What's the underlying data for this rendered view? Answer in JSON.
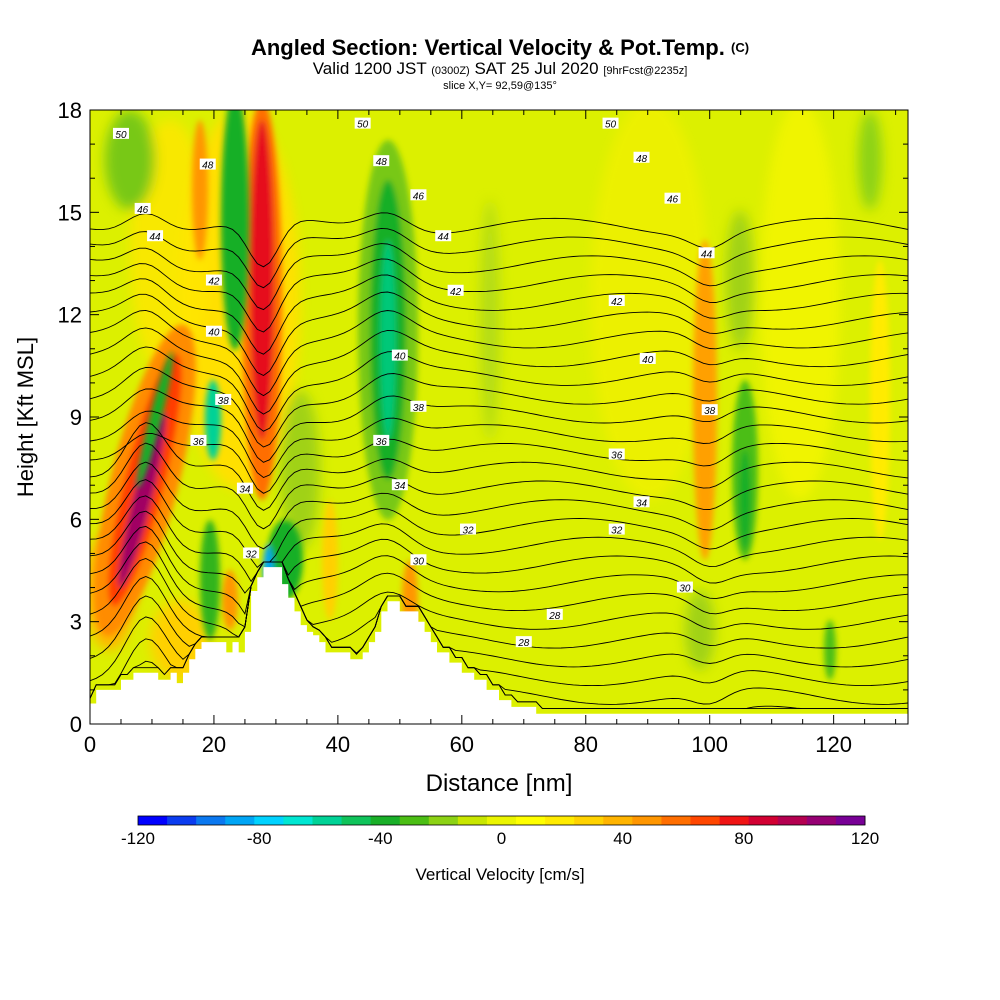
{
  "title": {
    "main": "Angled Section: Vertical Velocity & Pot.Temp.",
    "tag": "(C)",
    "valid_prefix": "Valid 1200 JST",
    "valid_utc": "(0300Z)",
    "valid_date": "SAT 25 Jul 2020",
    "forecast": "[9hrFcst@2235z]",
    "slice": "slice X,Y= 92,59@135°"
  },
  "colorbar": {
    "label": "Vertical Velocity [cm/s]",
    "ticks": [
      "-120",
      "-80",
      "-40",
      "0",
      "40",
      "80",
      "120"
    ],
    "colors": [
      "#0000ff",
      "#0a3cf0",
      "#0a78f0",
      "#00a5f5",
      "#00d2ff",
      "#00e6d2",
      "#00d296",
      "#0fc35a",
      "#19af28",
      "#4bbe14",
      "#8cd214",
      "#c8e600",
      "#ebf500",
      "#ffff00",
      "#ffeb00",
      "#ffd200",
      "#ffb400",
      "#ff9600",
      "#ff6e00",
      "#ff4600",
      "#f01414",
      "#d20032",
      "#b40050",
      "#960073",
      "#780096"
    ]
  },
  "chart_data": {
    "type": "heatmap",
    "xlabel": "Distance [nm]",
    "ylabel": "Height [Kft MSL]",
    "xlim": [
      0,
      132
    ],
    "ylim": [
      0,
      18
    ],
    "x_ticks": [
      "0",
      "20",
      "40",
      "60",
      "80",
      "100",
      "120"
    ],
    "y_ticks": [
      "0",
      "3",
      "6",
      "9",
      "12",
      "15",
      "18"
    ],
    "contour_field": "potential temperature (C)",
    "contour_levels": [
      26,
      28,
      30,
      32,
      34,
      36,
      38,
      40,
      42,
      44,
      46,
      48,
      50
    ],
    "contour_labels": [
      {
        "text": "50",
        "x": 5,
        "y": 17.3
      },
      {
        "text": "50",
        "x": 44,
        "y": 17.6
      },
      {
        "text": "50",
        "x": 84,
        "y": 17.6
      },
      {
        "text": "48",
        "x": 19,
        "y": 16.4
      },
      {
        "text": "48",
        "x": 47,
        "y": 16.5
      },
      {
        "text": "48",
        "x": 89,
        "y": 16.6
      },
      {
        "text": "46",
        "x": 8.5,
        "y": 15.1
      },
      {
        "text": "46",
        "x": 53,
        "y": 15.5
      },
      {
        "text": "46",
        "x": 94,
        "y": 15.4
      },
      {
        "text": "44",
        "x": 10.5,
        "y": 14.3
      },
      {
        "text": "44",
        "x": 57,
        "y": 14.3
      },
      {
        "text": "44",
        "x": 99.5,
        "y": 13.8
      },
      {
        "text": "42",
        "x": 20,
        "y": 13
      },
      {
        "text": "42",
        "x": 59,
        "y": 12.7
      },
      {
        "text": "42",
        "x": 85,
        "y": 12.4
      },
      {
        "text": "40",
        "x": 20,
        "y": 11.5
      },
      {
        "text": "40",
        "x": 50,
        "y": 10.8
      },
      {
        "text": "40",
        "x": 90,
        "y": 10.7
      },
      {
        "text": "38",
        "x": 21.5,
        "y": 9.5
      },
      {
        "text": "38",
        "x": 53,
        "y": 9.3
      },
      {
        "text": "38",
        "x": 100,
        "y": 9.2
      },
      {
        "text": "36",
        "x": 17.5,
        "y": 8.3
      },
      {
        "text": "36",
        "x": 47,
        "y": 8.3
      },
      {
        "text": "36",
        "x": 85,
        "y": 7.9
      },
      {
        "text": "34",
        "x": 25,
        "y": 6.9
      },
      {
        "text": "34",
        "x": 50,
        "y": 7
      },
      {
        "text": "34",
        "x": 89,
        "y": 6.5
      },
      {
        "text": "32",
        "x": 26,
        "y": 5
      },
      {
        "text": "32",
        "x": 61,
        "y": 5.7
      },
      {
        "text": "32",
        "x": 85,
        "y": 5.7
      },
      {
        "text": "30",
        "x": 53,
        "y": 4.8
      },
      {
        "text": "30",
        "x": 96,
        "y": 4
      },
      {
        "text": "28",
        "x": 75,
        "y": 3.2
      },
      {
        "text": "28",
        "x": 70,
        "y": 2.4
      }
    ],
    "velocity_features": [
      {
        "sign": "updraft",
        "x": 8,
        "y": 6.5,
        "peak": 120
      },
      {
        "sign": "updraft",
        "x": 28,
        "y": 12,
        "peak": 100
      },
      {
        "sign": "updraft",
        "x": 100,
        "y": 9,
        "peak": 40
      },
      {
        "sign": "downdraft",
        "x": 48,
        "y": 10,
        "peak": -50
      },
      {
        "sign": "downdraft",
        "x": 22,
        "y": 15,
        "peak": -40
      },
      {
        "sign": "downdraft",
        "x": 106,
        "y": 7,
        "peak": -35
      },
      {
        "sign": "downdraft",
        "x": 28,
        "y": 4,
        "peak": -100
      }
    ],
    "terrain_kft": [
      [
        0,
        0.6
      ],
      [
        1,
        0.6
      ],
      [
        1,
        1
      ],
      [
        5,
        1
      ],
      [
        5,
        1.3
      ],
      [
        7,
        1.3
      ],
      [
        7,
        1.5
      ],
      [
        11,
        1.5
      ],
      [
        11,
        1.3
      ],
      [
        13,
        1.3
      ],
      [
        13,
        1.5
      ],
      [
        14,
        1.5
      ],
      [
        14,
        1.2
      ],
      [
        15,
        1.2
      ],
      [
        15,
        1.5
      ],
      [
        16,
        1.5
      ],
      [
        16,
        1.9
      ],
      [
        17,
        1.9
      ],
      [
        17,
        2.2
      ],
      [
        18,
        2.2
      ],
      [
        18,
        2.4
      ],
      [
        22,
        2.4
      ],
      [
        22,
        2.1
      ],
      [
        23,
        2.1
      ],
      [
        23,
        2.4
      ],
      [
        24,
        2.4
      ],
      [
        24,
        2.1
      ],
      [
        25,
        2.1
      ],
      [
        25,
        2.7
      ],
      [
        26,
        2.7
      ],
      [
        26,
        3.9
      ],
      [
        27,
        3.9
      ],
      [
        27,
        4.3
      ],
      [
        28,
        4.3
      ],
      [
        28,
        4.6
      ],
      [
        31,
        4.6
      ],
      [
        31,
        4.1
      ],
      [
        32,
        4.1
      ],
      [
        32,
        3.7
      ],
      [
        33,
        3.7
      ],
      [
        33,
        3.3
      ],
      [
        34,
        3.3
      ],
      [
        34,
        2.9
      ],
      [
        35,
        2.9
      ],
      [
        35,
        2.7
      ],
      [
        36,
        2.7
      ],
      [
        36,
        2.6
      ],
      [
        37,
        2.6
      ],
      [
        37,
        2.4
      ],
      [
        38,
        2.4
      ],
      [
        38,
        2.1
      ],
      [
        42,
        2.1
      ],
      [
        42,
        1.9
      ],
      [
        44,
        1.9
      ],
      [
        44,
        2.1
      ],
      [
        45,
        2.1
      ],
      [
        45,
        2.4
      ],
      [
        46,
        2.4
      ],
      [
        46,
        2.7
      ],
      [
        47,
        2.7
      ],
      [
        47,
        3.3
      ],
      [
        48,
        3.3
      ],
      [
        48,
        3.6
      ],
      [
        50,
        3.6
      ],
      [
        50,
        3.3
      ],
      [
        53,
        3.3
      ],
      [
        53,
        3
      ],
      [
        54,
        3
      ],
      [
        54,
        2.7
      ],
      [
        55,
        2.7
      ],
      [
        55,
        2.4
      ],
      [
        56,
        2.4
      ],
      [
        56,
        2.1
      ],
      [
        58,
        2.1
      ],
      [
        58,
        1.8
      ],
      [
        60,
        1.8
      ],
      [
        60,
        1.5
      ],
      [
        62,
        1.5
      ],
      [
        62,
        1.3
      ],
      [
        64,
        1.3
      ],
      [
        64,
        1
      ],
      [
        66,
        1
      ],
      [
        66,
        0.7
      ],
      [
        68,
        0.7
      ],
      [
        68,
        0.5
      ],
      [
        72,
        0.5
      ],
      [
        72,
        0.3
      ],
      [
        132,
        0.3
      ],
      [
        132,
        0
      ]
    ]
  }
}
